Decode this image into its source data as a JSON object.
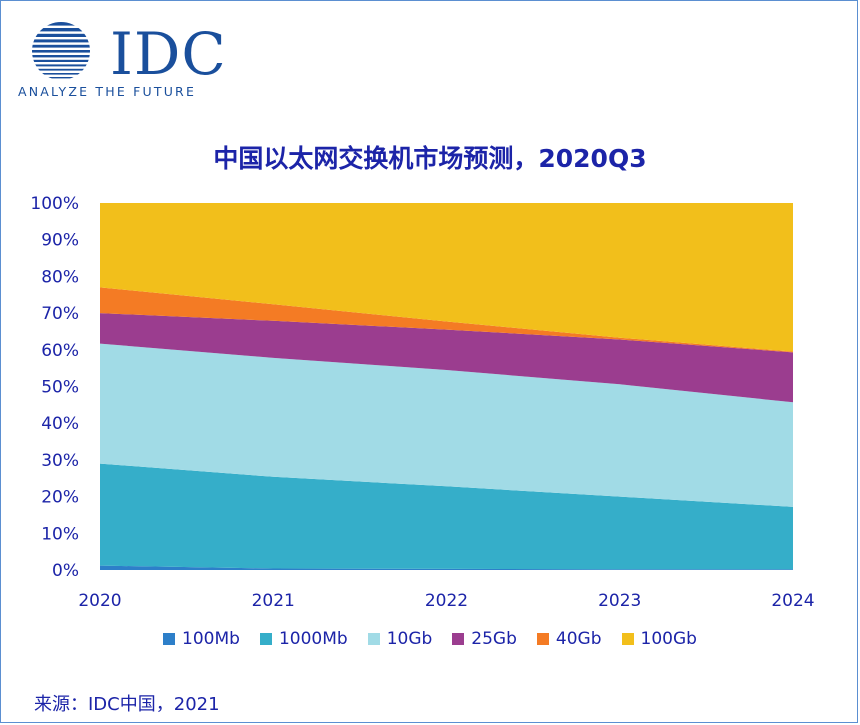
{
  "logo": {
    "word": "IDC",
    "tagline": "ANALYZE THE FUTURE"
  },
  "colors": {
    "title": "#1c24a8",
    "axis_text": "#1c24a8",
    "logo_blue": "#1a4f9c",
    "border": "#5b8fd1"
  },
  "chart_data": {
    "type": "area",
    "stacked": true,
    "percent": true,
    "title": "中国以太网交换机市场预测，2020Q3",
    "xlabel": "",
    "ylabel": "",
    "x": [
      "2020",
      "2021",
      "2022",
      "2023",
      "2024"
    ],
    "ylim": [
      0,
      100
    ],
    "yticks": [
      "0%",
      "10%",
      "20%",
      "30%",
      "40%",
      "50%",
      "60%",
      "70%",
      "80%",
      "90%",
      "100%"
    ],
    "grid": false,
    "legend": "bottom",
    "series": [
      {
        "name": "100Mb",
        "color": "#2d7fc9",
        "values": [
          1.2,
          0.4,
          0.3,
          0.2,
          0.2
        ]
      },
      {
        "name": "1000Mb",
        "color": "#35aec9",
        "values": [
          27.8,
          25.0,
          22.5,
          19.8,
          17.0
        ]
      },
      {
        "name": "10Gb",
        "color": "#a1dbe6",
        "values": [
          32.7,
          32.4,
          31.7,
          30.6,
          28.5
        ]
      },
      {
        "name": "25Gb",
        "color": "#9b3d8f",
        "values": [
          8.3,
          10.1,
          11.0,
          12.2,
          13.6
        ]
      },
      {
        "name": "40Gb",
        "color": "#f47b24",
        "values": [
          7.0,
          4.5,
          2.2,
          0.5,
          0.2
        ]
      },
      {
        "name": "100Gb",
        "color": "#f2bf1b",
        "values": [
          23.0,
          27.6,
          32.3,
          36.7,
          40.5
        ]
      }
    ]
  },
  "source": "来源：IDC中国，2021"
}
